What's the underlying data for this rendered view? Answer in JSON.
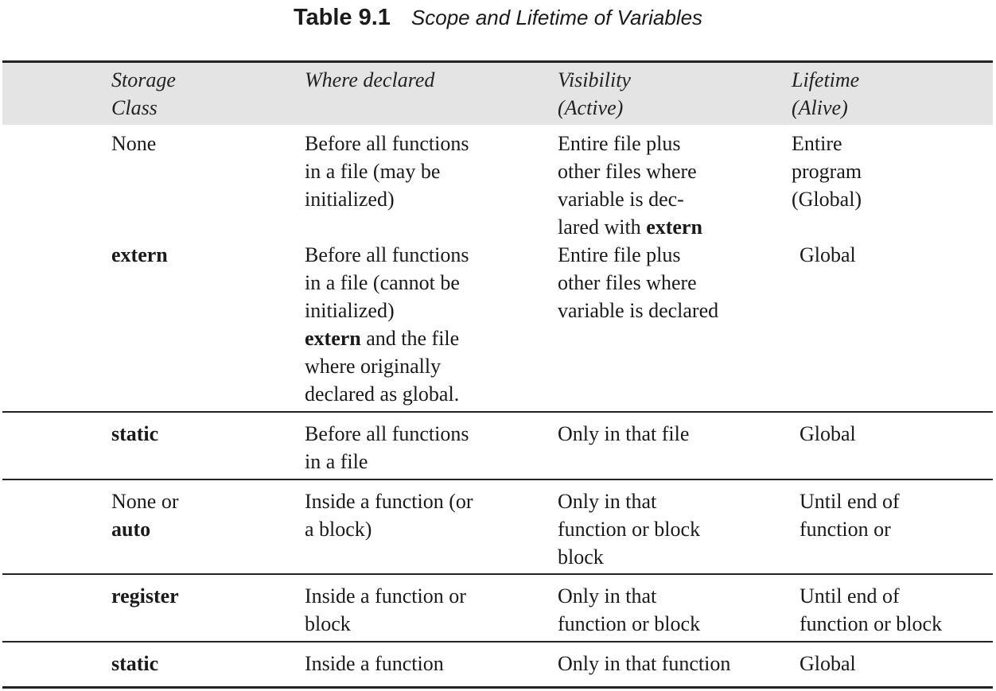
{
  "caption": {
    "label": "Table 9.1",
    "title": "Scope and Lifetime of Variables"
  },
  "headers": {
    "storage_l1": "Storage",
    "storage_l2": "Class",
    "where": "Where declared",
    "visibility_l1": "Visibility",
    "visibility_l2": "(Active)",
    "lifetime_l1": "Lifetime",
    "lifetime_l2": "(Alive)"
  },
  "rows": [
    {
      "storage": "None",
      "where": [
        "Before all functions",
        "in a file (may be",
        "initialized)"
      ],
      "visibility": [
        "Entire file plus",
        "other files where",
        "variable is dec-",
        "lared with "
      ],
      "visibility_bold": "extern",
      "lifetime": [
        "Entire",
        "program",
        "(Global)"
      ]
    },
    {
      "storage": "extern",
      "where": [
        "Before all functions",
        "in a file (cannot be",
        "initialized)"
      ],
      "where_bold": "extern",
      "where_extra": [
        " and the file",
        "where originally",
        "declared as global."
      ],
      "visibility": [
        "Entire file plus",
        "other files where",
        "variable is declared"
      ],
      "lifetime": [
        "Global"
      ]
    },
    {
      "storage": "static",
      "where": [
        "Before all functions",
        "in a file"
      ],
      "visibility": [
        "Only in that file"
      ],
      "lifetime": [
        "Global"
      ]
    },
    {
      "storage": "None or",
      "storage_bold": "auto",
      "where": [
        "Inside a function (or",
        "a block)"
      ],
      "visibility": [
        "Only in that",
        "function or block",
        "block"
      ],
      "lifetime": [
        "Until end of",
        "function or"
      ]
    },
    {
      "storage": "register",
      "where": [
        "Inside a function or",
        "block"
      ],
      "visibility": [
        "Only in that",
        "function or block"
      ],
      "lifetime": [
        "Until end of",
        "function or block"
      ]
    },
    {
      "storage": "static",
      "where": [
        "Inside a function"
      ],
      "visibility": [
        "Only in that function"
      ],
      "lifetime": [
        "Global"
      ]
    }
  ]
}
